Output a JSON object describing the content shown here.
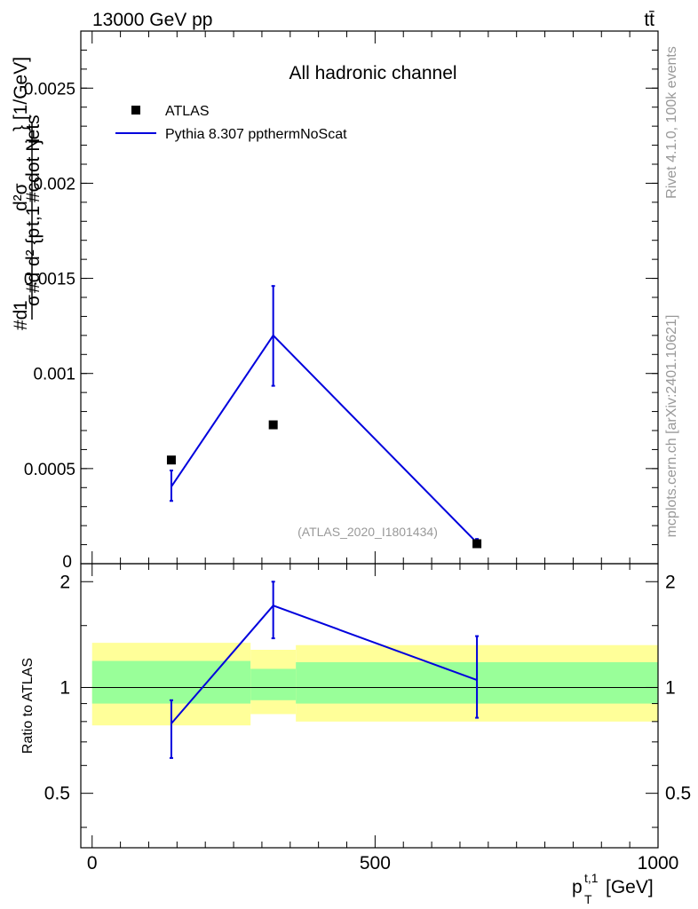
{
  "header": {
    "energy_label": "13000 GeV pp",
    "process_label": "tt̄"
  },
  "side_labels": {
    "rivet": "Rivet 4.1.0,  100k events",
    "source": "mcplots.cern.ch [arXiv:2401.10621]"
  },
  "chart_data": [
    {
      "type": "scatter",
      "panel": "main",
      "title": "All hadronic channel",
      "watermark": "(ATLAS_2020_I1801434)",
      "xlabel": "p_T^{t,1} [GeV]",
      "ylabel": "#d^{2}σ^{fid} ... / σ^{fid} d^{2} {p_T^{t,1} #cdot N_{jets}} [1/GeV]",
      "xlim": [
        -20,
        1000
      ],
      "ylim": [
        0,
        0.0028
      ],
      "yticks": [
        0.0005,
        0.001,
        0.0015,
        0.002,
        0.0025
      ],
      "ytick_labels": [
        "0.0005",
        "0.001",
        "0.0015",
        "0.002",
        "0.0025"
      ],
      "ytick_zero_label": "0",
      "legend": [
        {
          "label": "ATLAS",
          "marker": "square",
          "color": "#000000"
        },
        {
          "label": "Pythia 8.307 ppthermNoScat",
          "marker": "line",
          "color": "#0000dd"
        }
      ],
      "series": [
        {
          "name": "ATLAS",
          "x": [
            140,
            320,
            680
          ],
          "y": [
            0.000545,
            0.00073,
            0.000105
          ]
        },
        {
          "name": "Pythia 8.307 ppthermNoScat",
          "x": [
            140,
            320,
            680
          ],
          "y": [
            0.000405,
            0.0012,
            0.00011
          ],
          "yerr_low": [
            7.5e-05,
            0.000265,
            2e-05
          ],
          "yerr_high": [
            8.5e-05,
            0.00026,
            2e-05
          ]
        }
      ]
    },
    {
      "type": "scatter",
      "panel": "ratio",
      "ylabel": "Ratio to ATLAS",
      "xlim": [
        -20,
        1000
      ],
      "ylim": [
        0.35,
        2.25
      ],
      "yticks": [
        0.5,
        1,
        2
      ],
      "ytick_labels": [
        "0.5",
        "1",
        "2"
      ],
      "xticks": [
        0,
        500,
        1000
      ],
      "xtick_labels": [
        "0",
        "500",
        "1000"
      ],
      "reference_line": 1,
      "bands": [
        {
          "x0": 0,
          "x1": 280,
          "green": [
            0.9,
            1.19
          ],
          "yellow": [
            0.78,
            1.34
          ]
        },
        {
          "x0": 280,
          "x1": 360,
          "green": [
            0.92,
            1.13
          ],
          "yellow": [
            0.84,
            1.28
          ]
        },
        {
          "x0": 360,
          "x1": 1000,
          "green": [
            0.9,
            1.18
          ],
          "yellow": [
            0.8,
            1.32
          ]
        }
      ],
      "band_colors": {
        "green": "#99ff99",
        "yellow": "#ffff99"
      },
      "series": [
        {
          "name": "Pythia 8.307 ppthermNoScat",
          "x": [
            140,
            320,
            680
          ],
          "y": [
            0.79,
            1.71,
            1.05
          ],
          "yerr_low": [
            0.16,
            0.33,
            0.23
          ],
          "yerr_high": [
            0.13,
            0.29,
            0.35
          ]
        }
      ]
    }
  ]
}
